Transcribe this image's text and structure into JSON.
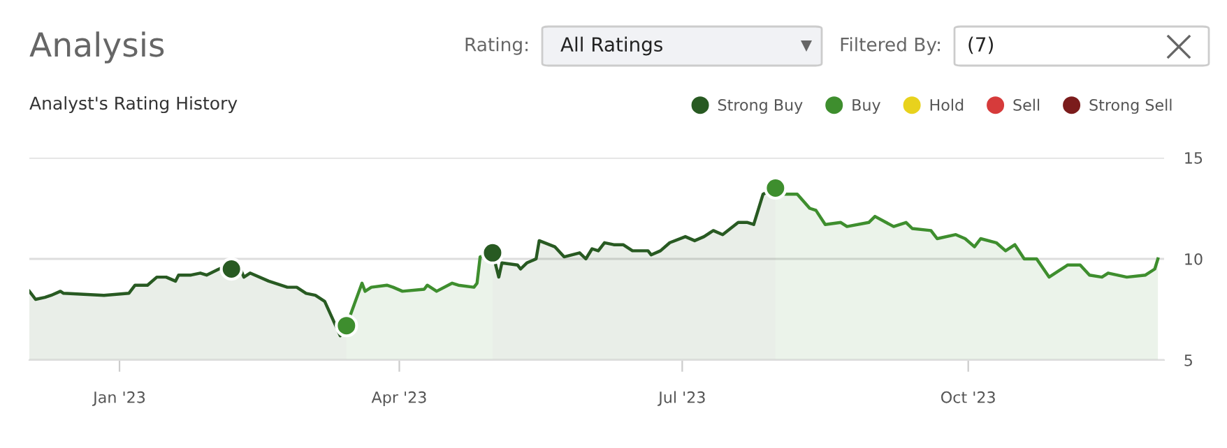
{
  "chart_data": {
    "type": "area",
    "title": "Analysis",
    "subtitle": "Analyst's Rating History",
    "annotations": [
      "Rating:",
      "All Ratings",
      "Filtered By:",
      "(7)"
    ],
    "xlim": [
      "2022-12-03",
      "2023-12-03"
    ],
    "ylim": [
      5,
      15
    ],
    "xticks": [
      {
        "value": "2023-01-01",
        "label": "Jan '23"
      },
      {
        "value": "2023-04-01",
        "label": "Apr '23"
      },
      {
        "value": "2023-07-01",
        "label": "Jul '23"
      },
      {
        "value": "2023-10-01",
        "label": "Oct '23"
      }
    ],
    "yticks": [
      5,
      10,
      15
    ],
    "grid": "y",
    "legend": "top right",
    "series": [
      {
        "color": "#285a22",
        "x": [
          "2022-12-03",
          "2022-12-05",
          "2022-12-08",
          "2022-12-10",
          "2022-12-13",
          "2022-12-14",
          "2022-12-27",
          "2023-01-04",
          "2023-01-06",
          "2023-01-10",
          "2023-01-13",
          "2023-01-16",
          "2023-01-19",
          "2023-01-20",
          "2023-01-24",
          "2023-01-27",
          "2023-01-29",
          "2023-02-02",
          "2023-02-08",
          "2023-02-10",
          "2023-02-12",
          "2023-02-18",
          "2023-02-24",
          "2023-02-27",
          "2023-03-02",
          "2023-03-05",
          "2023-03-08",
          "2023-03-13",
          "2023-03-15"
        ],
        "values": [
          8.4,
          8.0,
          8.1,
          8.2,
          8.4,
          8.3,
          8.2,
          8.3,
          8.7,
          8.7,
          9.1,
          9.1,
          8.9,
          9.2,
          9.2,
          9.3,
          9.2,
          9.5,
          9.85,
          9.1,
          9.3,
          8.9,
          8.6,
          8.6,
          8.3,
          8.2,
          7.9,
          6.2,
          6.7
        ]
      },
      {
        "color": "#3e8e2e",
        "x": [
          "2023-03-15",
          "2023-03-20",
          "2023-03-21",
          "2023-03-23",
          "2023-03-28",
          "2023-03-30",
          "2023-04-02",
          "2023-04-09",
          "2023-04-10",
          "2023-04-13",
          "2023-04-18",
          "2023-04-20",
          "2023-04-25",
          "2023-04-26",
          "2023-04-27",
          "2023-05-01"
        ],
        "values": [
          6.7,
          8.8,
          8.4,
          8.6,
          8.7,
          8.6,
          8.4,
          8.5,
          8.7,
          8.4,
          8.8,
          8.7,
          8.6,
          8.8,
          10.1,
          10.3
        ]
      },
      {
        "color": "#285a22",
        "x": [
          "2023-05-01",
          "2023-05-03",
          "2023-05-04",
          "2023-05-09",
          "2023-05-10",
          "2023-05-12",
          "2023-05-15",
          "2023-05-16",
          "2023-05-21",
          "2023-05-24",
          "2023-05-29",
          "2023-05-31",
          "2023-06-02",
          "2023-06-04",
          "2023-06-06",
          "2023-06-09",
          "2023-06-12",
          "2023-06-15",
          "2023-06-20",
          "2023-06-21",
          "2023-06-24",
          "2023-06-27",
          "2023-07-02",
          "2023-07-05",
          "2023-07-08",
          "2023-07-11",
          "2023-07-14",
          "2023-07-19",
          "2023-07-22",
          "2023-07-24",
          "2023-07-27",
          "2023-07-31"
        ],
        "values": [
          10.3,
          9.1,
          9.8,
          9.7,
          9.5,
          9.8,
          10.0,
          10.9,
          10.6,
          10.1,
          10.3,
          10.0,
          10.5,
          10.4,
          10.8,
          10.7,
          10.7,
          10.4,
          10.4,
          10.2,
          10.4,
          10.8,
          11.1,
          10.9,
          11.1,
          11.4,
          11.2,
          11.8,
          11.8,
          11.7,
          13.2,
          13.5
        ]
      },
      {
        "color": "#3e8e2e",
        "x": [
          "2023-07-31",
          "2023-08-03",
          "2023-08-07",
          "2023-08-11",
          "2023-08-13",
          "2023-08-16",
          "2023-08-21",
          "2023-08-23",
          "2023-08-30",
          "2023-09-01",
          "2023-09-07",
          "2023-09-11",
          "2023-09-13",
          "2023-09-19",
          "2023-09-21",
          "2023-09-27",
          "2023-09-30",
          "2023-10-03",
          "2023-10-05",
          "2023-10-10",
          "2023-10-13",
          "2023-10-16",
          "2023-10-19",
          "2023-10-23",
          "2023-10-27",
          "2023-10-30",
          "2023-11-02",
          "2023-11-06",
          "2023-11-09",
          "2023-11-13",
          "2023-11-15",
          "2023-11-21",
          "2023-11-27",
          "2023-11-30",
          "2023-12-01"
        ],
        "values": [
          13.5,
          13.2,
          13.2,
          12.5,
          12.4,
          11.7,
          11.8,
          11.6,
          11.8,
          12.1,
          11.6,
          11.8,
          11.5,
          11.4,
          11.0,
          11.2,
          11.0,
          10.6,
          11.0,
          10.8,
          10.4,
          10.7,
          10.0,
          10.0,
          9.1,
          9.4,
          9.7,
          9.7,
          9.2,
          9.1,
          9.3,
          9.1,
          9.2,
          9.5,
          10.0
        ]
      },
      {
        "type": "scatter",
        "name": "Strong Buy",
        "color": "#285a22",
        "x": [
          "2023-02-06",
          "2023-05-01"
        ],
        "values": [
          9.5,
          10.3
        ]
      },
      {
        "type": "scatter",
        "name": "Buy",
        "color": "#3e8e2e",
        "x": [
          "2023-03-15",
          "2023-07-31"
        ],
        "values": [
          6.7,
          13.5
        ]
      },
      {
        "type": "scatter",
        "name": "Hold",
        "color": "#e8d21d"
      },
      {
        "type": "scatter",
        "name": "Sell",
        "color": "#d63b3b"
      },
      {
        "type": "scatter",
        "name": "Strong Sell",
        "color": "#7b1c1c"
      }
    ]
  }
}
